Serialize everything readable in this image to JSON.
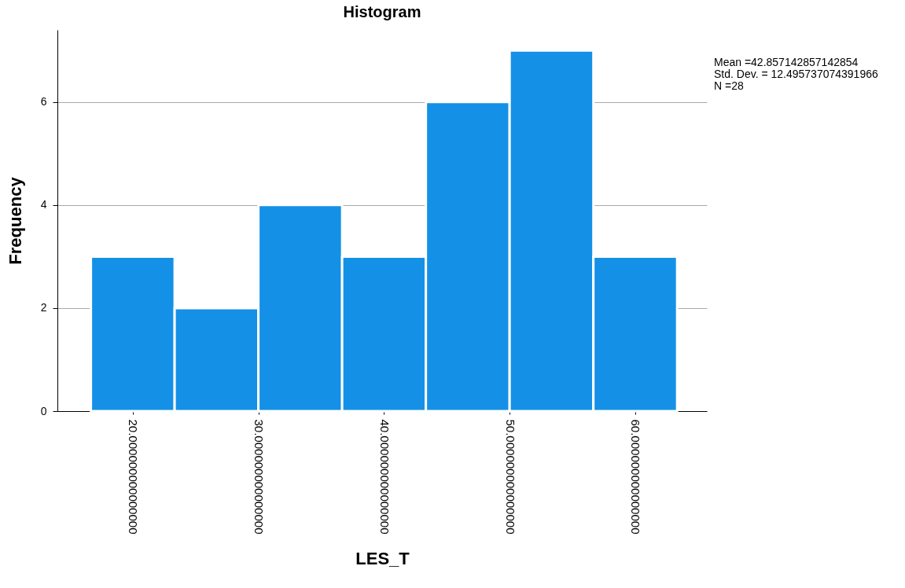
{
  "chart_data": {
    "type": "histogram",
    "title": "Histogram",
    "xlabel": "LES_T",
    "ylabel": "Frequency",
    "bins": [
      16.667,
      23.333,
      30,
      36.667,
      43.333,
      50,
      56.667,
      63.333
    ],
    "values": [
      3,
      2,
      4,
      3,
      6,
      7,
      3
    ],
    "color": "#1490e6",
    "xlim": [
      14,
      65.7
    ],
    "xticks": [
      {
        "value": 20,
        "label": "20.000000000000000"
      },
      {
        "value": 30,
        "label": "30.000000000000000"
      },
      {
        "value": 40,
        "label": "40.000000000000000"
      },
      {
        "value": 50,
        "label": "50.000000000000000"
      },
      {
        "value": 60,
        "label": "60.000000000000000"
      }
    ],
    "ylim": [
      0,
      7.4
    ],
    "yticks": [
      0,
      2,
      4,
      6
    ],
    "grid": "y",
    "annotations": [
      "Mean =42.857142857142854",
      "Std. Dev. = 12.495737074391966",
      "N =28"
    ]
  }
}
